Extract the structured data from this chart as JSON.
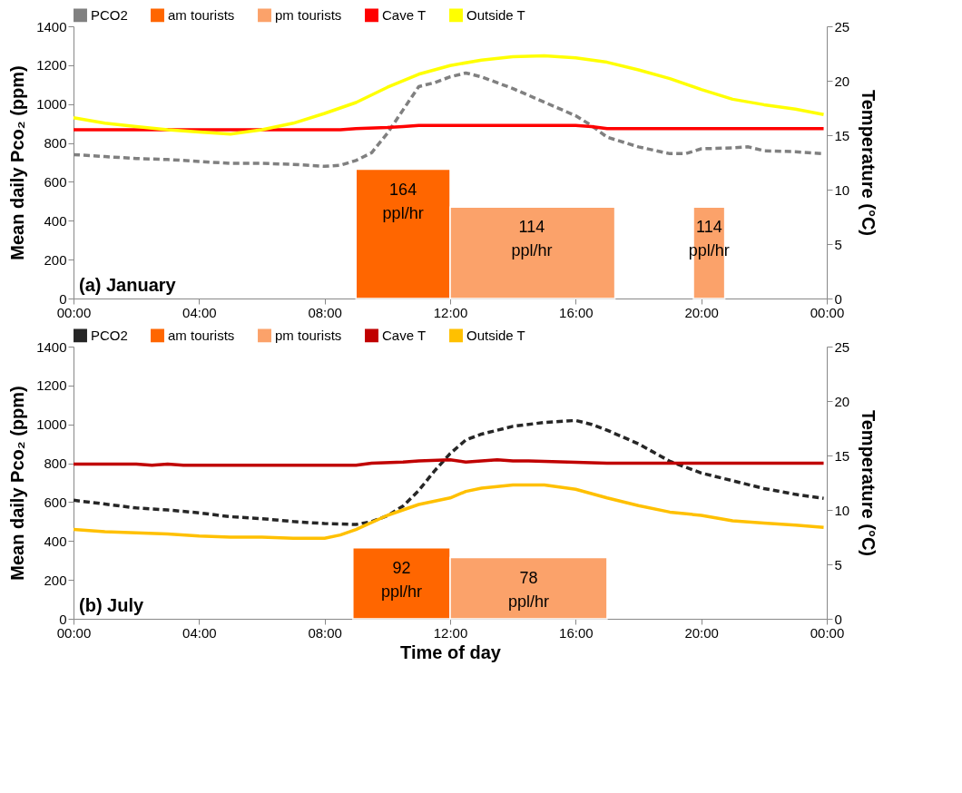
{
  "chart_data": [
    {
      "type": "line",
      "annotations": [
        "(a) January",
        {
          "text": "164 ppl/hr",
          "x": 10.5,
          "y": 665
        },
        {
          "text": "114 ppl/hr",
          "x": 14.6,
          "y": 470
        },
        {
          "text": "114 ppl/hr",
          "x": 20.25,
          "y": 470
        }
      ],
      "ylabel": "Mean daily Pco₂ (ppm)",
      "y2label": "Temperature (°C)",
      "xlim": [
        0,
        24
      ],
      "xticks": [
        {
          "value": 0,
          "label": "00:00"
        },
        {
          "value": 4,
          "label": "04:00"
        },
        {
          "value": 8,
          "label": "08:00"
        },
        {
          "value": 12,
          "label": "12:00"
        },
        {
          "value": 16,
          "label": "16:00"
        },
        {
          "value": 20,
          "label": "20:00"
        },
        {
          "value": 24,
          "label": "00:00"
        }
      ],
      "ylim": [
        0,
        1400
      ],
      "yticks": [
        0,
        200,
        400,
        600,
        800,
        1000,
        1200,
        1400
      ],
      "y2lim": [
        0,
        25
      ],
      "y2ticks": [
        0,
        5,
        10,
        15,
        20,
        25
      ],
      "legend": "top",
      "series": [
        {
          "name": "PCO2",
          "type": "line",
          "color": "#808080",
          "line_style": "dashed",
          "x": [
            0,
            1,
            2,
            3,
            4,
            5,
            6,
            7,
            8,
            8.5,
            9,
            9.5,
            10,
            10.5,
            11,
            11.5,
            12,
            12.5,
            13,
            13.5,
            14,
            15,
            16,
            16.5,
            17,
            18,
            19,
            19.5,
            20,
            21,
            21.5,
            22,
            23,
            23.9
          ],
          "values": [
            740,
            730,
            720,
            715,
            705,
            695,
            695,
            690,
            680,
            685,
            710,
            750,
            850,
            970,
            1090,
            1110,
            1140,
            1160,
            1140,
            1110,
            1080,
            1010,
            940,
            890,
            830,
            780,
            745,
            745,
            770,
            775,
            780,
            760,
            755,
            745
          ]
        },
        {
          "name": "am tourists",
          "type": "histogram",
          "color": "#ff6600",
          "bins": [
            9,
            12
          ],
          "values": [
            665
          ]
        },
        {
          "name": "pm tourists",
          "type": "histogram",
          "color": "#fba26a",
          "bins": [
            12,
            17.25,
            19.75,
            20.75
          ],
          "values": [
            470,
            null,
            470
          ]
        },
        {
          "name": "Cave T",
          "type": "line",
          "line_style": "solid",
          "axis": "y2",
          "color": "#ff0000",
          "x": [
            0,
            8.5,
            9,
            10,
            10.5,
            11,
            16,
            16.5,
            17,
            23.9
          ],
          "values": [
            15.5,
            15.5,
            15.6,
            15.7,
            15.8,
            15.9,
            15.9,
            15.8,
            15.6,
            15.6
          ]
        },
        {
          "name": "Outside T",
          "type": "line",
          "line_style": "solid",
          "axis": "y2",
          "color": "#ffff00",
          "x": [
            0,
            1,
            2,
            3,
            4,
            5,
            6,
            7,
            8,
            9,
            10,
            11,
            12,
            13,
            14,
            15,
            16,
            17,
            18,
            19,
            20,
            21,
            22,
            23,
            23.9
          ],
          "values": [
            16.6,
            16.1,
            15.8,
            15.5,
            15.3,
            15.1,
            15.5,
            16.1,
            17.0,
            18.0,
            19.4,
            20.6,
            21.4,
            21.9,
            22.2,
            22.3,
            22.1,
            21.7,
            21.0,
            20.2,
            19.2,
            18.3,
            17.8,
            17.4,
            16.9
          ]
        }
      ]
    },
    {
      "type": "line",
      "annotations": [
        "(b) July",
        {
          "text": "92 ppl/hr",
          "x": 10.45,
          "y": 365
        },
        {
          "text": "78 ppl/hr",
          "x": 14.5,
          "y": 315
        }
      ],
      "xlabel": "Time of day",
      "ylabel": "Mean daily Pco₂ (ppm)",
      "y2label": "Temperature (°C)",
      "xlim": [
        0,
        24
      ],
      "xticks": [
        {
          "value": 0,
          "label": "00:00"
        },
        {
          "value": 4,
          "label": "04:00"
        },
        {
          "value": 8,
          "label": "08:00"
        },
        {
          "value": 12,
          "label": "12:00"
        },
        {
          "value": 16,
          "label": "16:00"
        },
        {
          "value": 20,
          "label": "20:00"
        },
        {
          "value": 24,
          "label": "00:00"
        }
      ],
      "ylim": [
        0,
        1400
      ],
      "yticks": [
        0,
        200,
        400,
        600,
        800,
        1000,
        1200,
        1400
      ],
      "y2lim": [
        0,
        25
      ],
      "y2ticks": [
        0,
        5,
        10,
        15,
        20,
        25
      ],
      "legend": "top",
      "series": [
        {
          "name": "PCO2",
          "type": "line",
          "color": "#262626",
          "line_style": "dashed",
          "x": [
            0,
            1,
            2,
            3,
            4,
            5,
            6,
            7,
            8,
            9,
            9.5,
            10,
            10.5,
            11,
            11.5,
            12,
            12.5,
            13,
            14,
            15,
            16,
            16.5,
            17,
            18,
            19,
            20,
            21,
            22,
            23,
            23.9
          ],
          "values": [
            610,
            590,
            570,
            560,
            545,
            525,
            515,
            500,
            490,
            485,
            500,
            530,
            580,
            660,
            760,
            850,
            920,
            950,
            990,
            1010,
            1020,
            1000,
            970,
            900,
            810,
            750,
            710,
            670,
            640,
            620
          ]
        },
        {
          "name": "am tourists",
          "type": "histogram",
          "color": "#ff6600",
          "bins": [
            8.9,
            12
          ],
          "values": [
            365
          ]
        },
        {
          "name": "pm tourists",
          "type": "histogram",
          "color": "#fba26a",
          "bins": [
            12,
            17
          ],
          "values": [
            315
          ]
        },
        {
          "name": "Cave T",
          "type": "line",
          "line_style": "solid",
          "axis": "y2",
          "color": "#c00000",
          "x": [
            0,
            2,
            2.5,
            3,
            3.5,
            9,
            9.5,
            10.5,
            11,
            12,
            12.5,
            13,
            13.5,
            14,
            14.5,
            17,
            23.9
          ],
          "values": [
            14.2,
            14.2,
            14.1,
            14.2,
            14.1,
            14.1,
            14.3,
            14.4,
            14.5,
            14.6,
            14.4,
            14.5,
            14.6,
            14.5,
            14.5,
            14.3,
            14.3
          ]
        },
        {
          "name": "Outside T",
          "type": "line",
          "line_style": "solid",
          "axis": "y2",
          "color": "#ffc000",
          "x": [
            0,
            1,
            2,
            3,
            4,
            5,
            6,
            7,
            8,
            8.5,
            9,
            10,
            11,
            12,
            12.5,
            13,
            14,
            15,
            16,
            17,
            18,
            19,
            20,
            21,
            22,
            23,
            23.9
          ],
          "values": [
            8.2,
            8.0,
            7.9,
            7.8,
            7.6,
            7.5,
            7.5,
            7.4,
            7.4,
            7.7,
            8.2,
            9.5,
            10.5,
            11.1,
            11.7,
            12.0,
            12.3,
            12.3,
            11.9,
            11.1,
            10.4,
            9.8,
            9.5,
            9.0,
            8.8,
            8.6,
            8.4
          ]
        }
      ]
    }
  ]
}
